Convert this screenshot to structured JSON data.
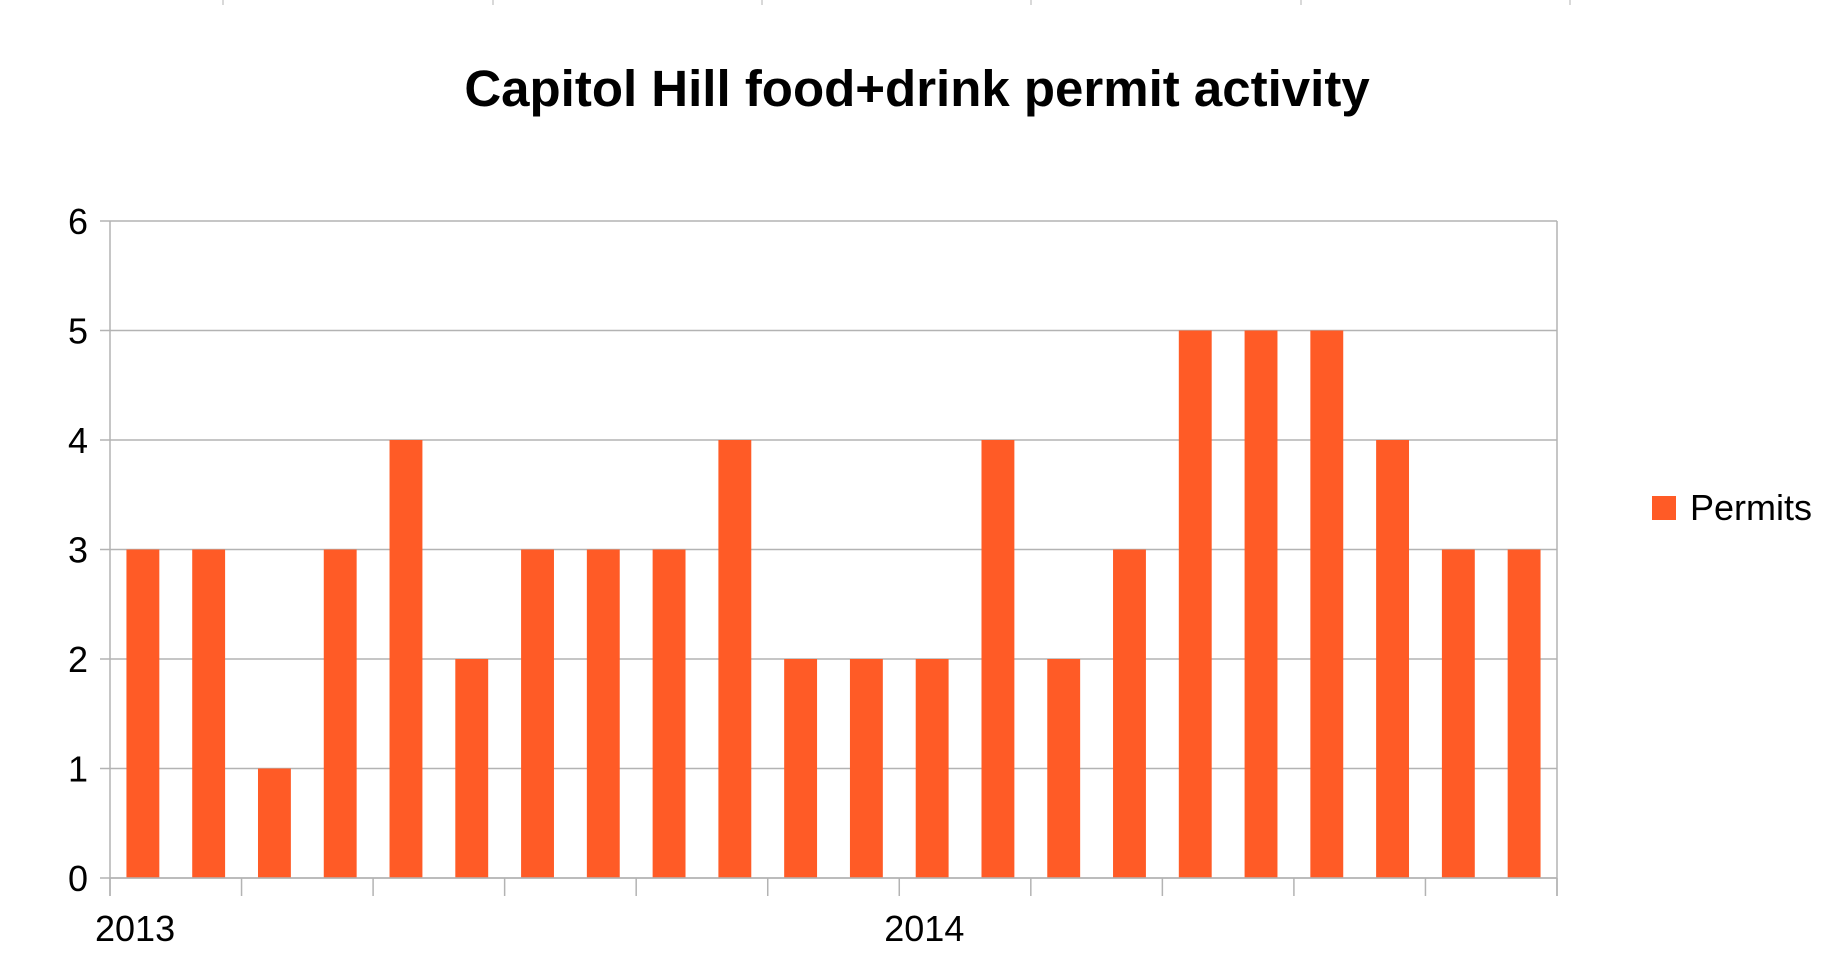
{
  "chart_data": {
    "type": "bar",
    "title": "Capitol Hill food+drink permit activity",
    "xlabel": "",
    "ylabel": "",
    "ylim": [
      0,
      6
    ],
    "yticks": [
      "0",
      "1",
      "2",
      "3",
      "4",
      "5",
      "6"
    ],
    "x_tick_labels": [
      {
        "label": "2013",
        "at_index": 0
      },
      {
        "label": "2014",
        "at_index": 12
      }
    ],
    "series": [
      {
        "name": "Permits",
        "color": "#ff5b26",
        "values": [
          3,
          3,
          1,
          3,
          4,
          2,
          3,
          3,
          3,
          4,
          2,
          2,
          2,
          4,
          2,
          3,
          5,
          5,
          5,
          4,
          3,
          3
        ]
      }
    ],
    "grid": true,
    "legend_position": "right"
  }
}
